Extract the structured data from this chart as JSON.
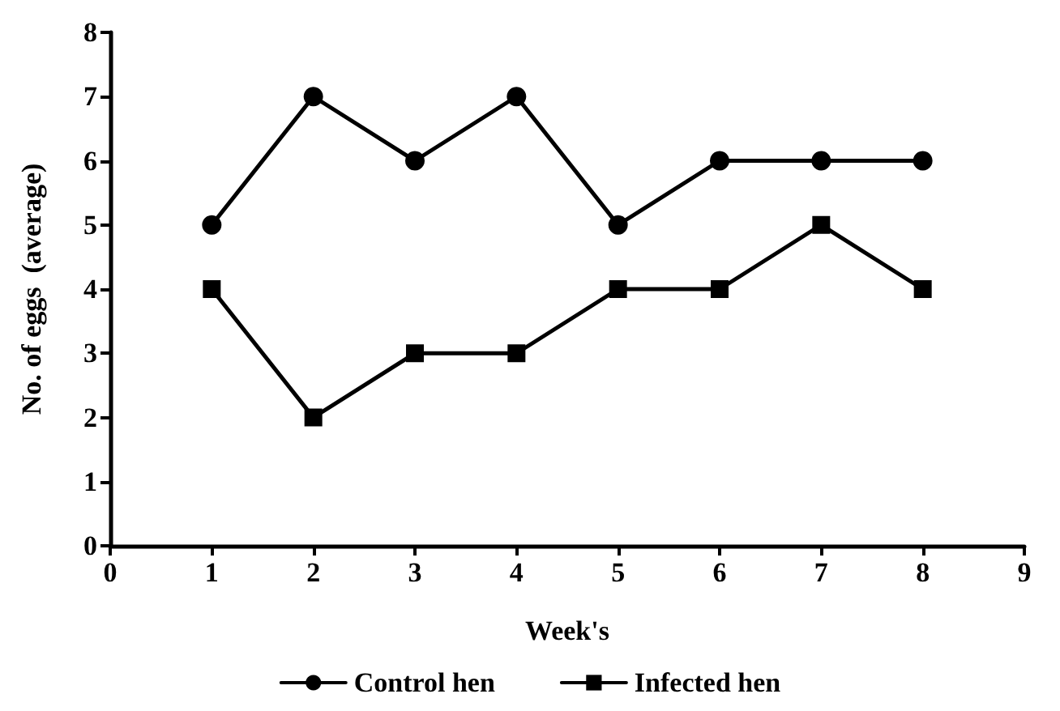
{
  "chart_data": {
    "type": "line",
    "xlabel": "Week's",
    "ylabel": "No. of eggs  (average)",
    "x": [
      1,
      2,
      3,
      4,
      5,
      6,
      7,
      8
    ],
    "series": [
      {
        "name": "Control hen",
        "color": "#000000",
        "marker": "circle",
        "values": [
          5,
          7,
          6,
          7,
          5,
          6,
          6,
          6
        ]
      },
      {
        "name": "Infected hen",
        "color": "#000000",
        "marker": "square",
        "values": [
          4,
          2,
          3,
          3,
          4,
          4,
          5,
          4
        ]
      }
    ],
    "xlim": [
      0,
      9
    ],
    "xticks": [
      0,
      1,
      2,
      3,
      4,
      5,
      6,
      7,
      8,
      9
    ],
    "ylim": [
      0,
      8
    ],
    "yticks": [
      0,
      1,
      2,
      3,
      4,
      5,
      6,
      7,
      8
    ],
    "grid": false,
    "legend": "bottom",
    "line_style": "solid"
  }
}
